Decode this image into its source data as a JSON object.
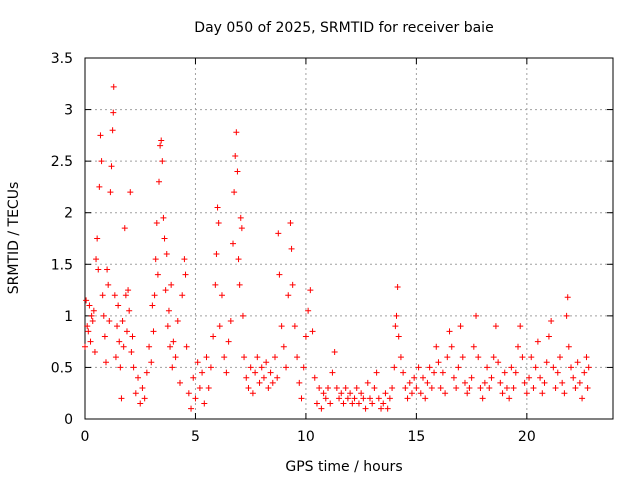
{
  "chart_data": {
    "type": "scatter",
    "title": "Day 050 of 2025, SRMTID for receiver baie",
    "xlabel": "GPS time / hours",
    "ylabel": "SRMTID / TECUs",
    "xlim": [
      0,
      23.9
    ],
    "ylim": [
      0,
      3.5
    ],
    "x_ticks": [
      0,
      5,
      10,
      15,
      20
    ],
    "x_tick_labels": [
      "0",
      "5",
      "10",
      "15",
      "20"
    ],
    "y_ticks": [
      0,
      0.5,
      1,
      1.5,
      2,
      2.5,
      3,
      3.5
    ],
    "y_tick_labels": [
      "0",
      "0.5",
      "1",
      "1.5",
      "2",
      "2.5",
      "3",
      "3.5"
    ],
    "grid": true,
    "marker": "+",
    "color": "#ff0000",
    "series": [
      {
        "name": "SRMTID",
        "points": [
          [
            0.0,
            0.7
          ],
          [
            0.05,
            1.15
          ],
          [
            0.1,
            0.9
          ],
          [
            0.15,
            0.85
          ],
          [
            0.2,
            1.1
          ],
          [
            0.25,
            0.75
          ],
          [
            0.3,
            1.0
          ],
          [
            0.35,
            0.95
          ],
          [
            0.4,
            1.05
          ],
          [
            0.45,
            0.65
          ],
          [
            0.5,
            1.55
          ],
          [
            0.55,
            1.75
          ],
          [
            0.6,
            1.45
          ],
          [
            0.65,
            2.25
          ],
          [
            0.7,
            2.75
          ],
          [
            0.75,
            2.5
          ],
          [
            0.8,
            1.2
          ],
          [
            0.85,
            1.0
          ],
          [
            0.9,
            0.8
          ],
          [
            0.95,
            0.55
          ],
          [
            1.0,
            1.45
          ],
          [
            1.05,
            1.3
          ],
          [
            1.1,
            0.95
          ],
          [
            1.15,
            2.2
          ],
          [
            1.2,
            2.45
          ],
          [
            1.25,
            2.8
          ],
          [
            1.28,
            2.97
          ],
          [
            1.3,
            3.22
          ],
          [
            1.35,
            1.2
          ],
          [
            1.4,
            0.6
          ],
          [
            1.45,
            0.9
          ],
          [
            1.5,
            1.1
          ],
          [
            1.55,
            0.75
          ],
          [
            1.6,
            0.5
          ],
          [
            1.65,
            0.2
          ],
          [
            1.7,
            0.95
          ],
          [
            1.75,
            0.7
          ],
          [
            1.8,
            1.85
          ],
          [
            1.85,
            1.2
          ],
          [
            1.9,
            0.85
          ],
          [
            1.95,
            1.25
          ],
          [
            2.0,
            1.05
          ],
          [
            2.05,
            2.2
          ],
          [
            2.1,
            0.65
          ],
          [
            2.15,
            0.8
          ],
          [
            2.2,
            0.5
          ],
          [
            2.3,
            0.25
          ],
          [
            2.4,
            0.4
          ],
          [
            2.5,
            0.15
          ],
          [
            2.6,
            0.3
          ],
          [
            2.7,
            0.2
          ],
          [
            2.8,
            0.45
          ],
          [
            2.9,
            0.7
          ],
          [
            3.0,
            0.55
          ],
          [
            3.05,
            1.1
          ],
          [
            3.1,
            0.85
          ],
          [
            3.15,
            1.2
          ],
          [
            3.2,
            1.55
          ],
          [
            3.25,
            1.9
          ],
          [
            3.3,
            1.4
          ],
          [
            3.35,
            2.3
          ],
          [
            3.4,
            2.65
          ],
          [
            3.45,
            2.7
          ],
          [
            3.5,
            2.5
          ],
          [
            3.55,
            1.95
          ],
          [
            3.6,
            1.75
          ],
          [
            3.65,
            1.25
          ],
          [
            3.7,
            1.6
          ],
          [
            3.75,
            0.9
          ],
          [
            3.8,
            1.05
          ],
          [
            3.85,
            0.7
          ],
          [
            3.9,
            1.3
          ],
          [
            3.95,
            0.5
          ],
          [
            4.0,
            0.75
          ],
          [
            4.1,
            0.6
          ],
          [
            4.2,
            0.95
          ],
          [
            4.3,
            0.35
          ],
          [
            4.4,
            1.2
          ],
          [
            4.5,
            1.55
          ],
          [
            4.55,
            1.4
          ],
          [
            4.6,
            0.7
          ],
          [
            4.7,
            0.25
          ],
          [
            4.8,
            0.1
          ],
          [
            4.9,
            0.4
          ],
          [
            5.0,
            0.2
          ],
          [
            5.1,
            0.55
          ],
          [
            5.2,
            0.3
          ],
          [
            5.3,
            0.45
          ],
          [
            5.4,
            0.15
          ],
          [
            5.5,
            0.6
          ],
          [
            5.6,
            0.3
          ],
          [
            5.7,
            0.5
          ],
          [
            5.8,
            0.8
          ],
          [
            5.9,
            1.3
          ],
          [
            5.95,
            1.6
          ],
          [
            6.0,
            2.05
          ],
          [
            6.05,
            1.9
          ],
          [
            6.1,
            0.9
          ],
          [
            6.2,
            1.2
          ],
          [
            6.3,
            0.6
          ],
          [
            6.4,
            0.45
          ],
          [
            6.5,
            0.75
          ],
          [
            6.6,
            0.95
          ],
          [
            6.7,
            1.7
          ],
          [
            6.75,
            2.2
          ],
          [
            6.8,
            2.55
          ],
          [
            6.85,
            2.78
          ],
          [
            6.9,
            2.4
          ],
          [
            6.95,
            1.55
          ],
          [
            7.0,
            1.3
          ],
          [
            7.05,
            1.95
          ],
          [
            7.1,
            1.85
          ],
          [
            7.15,
            1.0
          ],
          [
            7.2,
            0.6
          ],
          [
            7.3,
            0.4
          ],
          [
            7.4,
            0.3
          ],
          [
            7.5,
            0.5
          ],
          [
            7.6,
            0.25
          ],
          [
            7.7,
            0.45
          ],
          [
            7.8,
            0.6
          ],
          [
            7.9,
            0.35
          ],
          [
            8.0,
            0.5
          ],
          [
            8.1,
            0.4
          ],
          [
            8.2,
            0.55
          ],
          [
            8.3,
            0.3
          ],
          [
            8.4,
            0.45
          ],
          [
            8.5,
            0.35
          ],
          [
            8.6,
            0.6
          ],
          [
            8.7,
            0.4
          ],
          [
            8.75,
            1.8
          ],
          [
            8.8,
            1.4
          ],
          [
            8.9,
            0.9
          ],
          [
            9.0,
            0.7
          ],
          [
            9.1,
            0.5
          ],
          [
            9.2,
            1.2
          ],
          [
            9.3,
            1.9
          ],
          [
            9.35,
            1.65
          ],
          [
            9.4,
            1.3
          ],
          [
            9.5,
            0.9
          ],
          [
            9.6,
            0.6
          ],
          [
            9.7,
            0.35
          ],
          [
            9.8,
            0.2
          ],
          [
            9.9,
            0.5
          ],
          [
            10.0,
            0.8
          ],
          [
            10.1,
            1.05
          ],
          [
            10.2,
            1.25
          ],
          [
            10.3,
            0.85
          ],
          [
            10.4,
            0.4
          ],
          [
            10.5,
            0.15
          ],
          [
            10.6,
            0.3
          ],
          [
            10.7,
            0.1
          ],
          [
            10.8,
            0.25
          ],
          [
            10.9,
            0.2
          ],
          [
            11.0,
            0.3
          ],
          [
            11.1,
            0.15
          ],
          [
            11.2,
            0.45
          ],
          [
            11.3,
            0.65
          ],
          [
            11.4,
            0.3
          ],
          [
            11.5,
            0.2
          ],
          [
            11.6,
            0.25
          ],
          [
            11.7,
            0.15
          ],
          [
            11.8,
            0.3
          ],
          [
            11.9,
            0.2
          ],
          [
            12.0,
            0.25
          ],
          [
            12.1,
            0.15
          ],
          [
            12.2,
            0.2
          ],
          [
            12.3,
            0.3
          ],
          [
            12.4,
            0.15
          ],
          [
            12.5,
            0.25
          ],
          [
            12.6,
            0.2
          ],
          [
            12.7,
            0.1
          ],
          [
            12.8,
            0.35
          ],
          [
            12.9,
            0.2
          ],
          [
            13.0,
            0.15
          ],
          [
            13.1,
            0.3
          ],
          [
            13.2,
            0.45
          ],
          [
            13.3,
            0.2
          ],
          [
            13.4,
            0.1
          ],
          [
            13.5,
            0.15
          ],
          [
            13.6,
            0.25
          ],
          [
            13.7,
            0.1
          ],
          [
            13.8,
            0.2
          ],
          [
            13.9,
            0.3
          ],
          [
            14.0,
            0.5
          ],
          [
            14.05,
            0.9
          ],
          [
            14.1,
            1.0
          ],
          [
            14.15,
            1.28
          ],
          [
            14.2,
            0.8
          ],
          [
            14.3,
            0.6
          ],
          [
            14.4,
            0.45
          ],
          [
            14.5,
            0.3
          ],
          [
            14.6,
            0.2
          ],
          [
            14.7,
            0.35
          ],
          [
            14.8,
            0.25
          ],
          [
            14.9,
            0.4
          ],
          [
            15.0,
            0.3
          ],
          [
            15.1,
            0.5
          ],
          [
            15.2,
            0.25
          ],
          [
            15.3,
            0.4
          ],
          [
            15.4,
            0.2
          ],
          [
            15.5,
            0.35
          ],
          [
            15.6,
            0.5
          ],
          [
            15.7,
            0.3
          ],
          [
            15.8,
            0.45
          ],
          [
            15.9,
            0.7
          ],
          [
            16.0,
            0.55
          ],
          [
            16.1,
            0.3
          ],
          [
            16.2,
            0.45
          ],
          [
            16.3,
            0.25
          ],
          [
            16.4,
            0.6
          ],
          [
            16.5,
            0.85
          ],
          [
            16.6,
            0.7
          ],
          [
            16.7,
            0.4
          ],
          [
            16.8,
            0.3
          ],
          [
            16.9,
            0.5
          ],
          [
            17.0,
            0.9
          ],
          [
            17.1,
            0.6
          ],
          [
            17.2,
            0.35
          ],
          [
            17.3,
            0.25
          ],
          [
            17.4,
            0.3
          ],
          [
            17.5,
            0.4
          ],
          [
            17.6,
            0.7
          ],
          [
            17.7,
            1.0
          ],
          [
            17.8,
            0.6
          ],
          [
            17.9,
            0.3
          ],
          [
            18.0,
            0.2
          ],
          [
            18.1,
            0.35
          ],
          [
            18.2,
            0.5
          ],
          [
            18.3,
            0.3
          ],
          [
            18.4,
            0.4
          ],
          [
            18.5,
            0.6
          ],
          [
            18.6,
            0.9
          ],
          [
            18.7,
            0.55
          ],
          [
            18.8,
            0.35
          ],
          [
            18.9,
            0.25
          ],
          [
            19.0,
            0.45
          ],
          [
            19.1,
            0.3
          ],
          [
            19.2,
            0.2
          ],
          [
            19.3,
            0.5
          ],
          [
            19.4,
            0.3
          ],
          [
            19.5,
            0.45
          ],
          [
            19.6,
            0.7
          ],
          [
            19.7,
            0.9
          ],
          [
            19.8,
            0.6
          ],
          [
            19.9,
            0.35
          ],
          [
            20.0,
            0.25
          ],
          [
            20.1,
            0.4
          ],
          [
            20.2,
            0.6
          ],
          [
            20.3,
            0.3
          ],
          [
            20.4,
            0.5
          ],
          [
            20.5,
            0.75
          ],
          [
            20.6,
            0.4
          ],
          [
            20.7,
            0.25
          ],
          [
            20.8,
            0.35
          ],
          [
            20.9,
            0.55
          ],
          [
            21.0,
            0.8
          ],
          [
            21.1,
            0.95
          ],
          [
            21.2,
            0.5
          ],
          [
            21.3,
            0.3
          ],
          [
            21.4,
            0.45
          ],
          [
            21.5,
            0.6
          ],
          [
            21.6,
            0.35
          ],
          [
            21.7,
            0.25
          ],
          [
            21.8,
            1.0
          ],
          [
            21.85,
            1.18
          ],
          [
            21.9,
            0.7
          ],
          [
            22.0,
            0.5
          ],
          [
            22.1,
            0.4
          ],
          [
            22.2,
            0.3
          ],
          [
            22.3,
            0.55
          ],
          [
            22.4,
            0.35
          ],
          [
            22.5,
            0.2
          ],
          [
            22.6,
            0.45
          ],
          [
            22.7,
            0.6
          ],
          [
            22.75,
            0.3
          ],
          [
            22.8,
            0.5
          ]
        ]
      }
    ]
  }
}
